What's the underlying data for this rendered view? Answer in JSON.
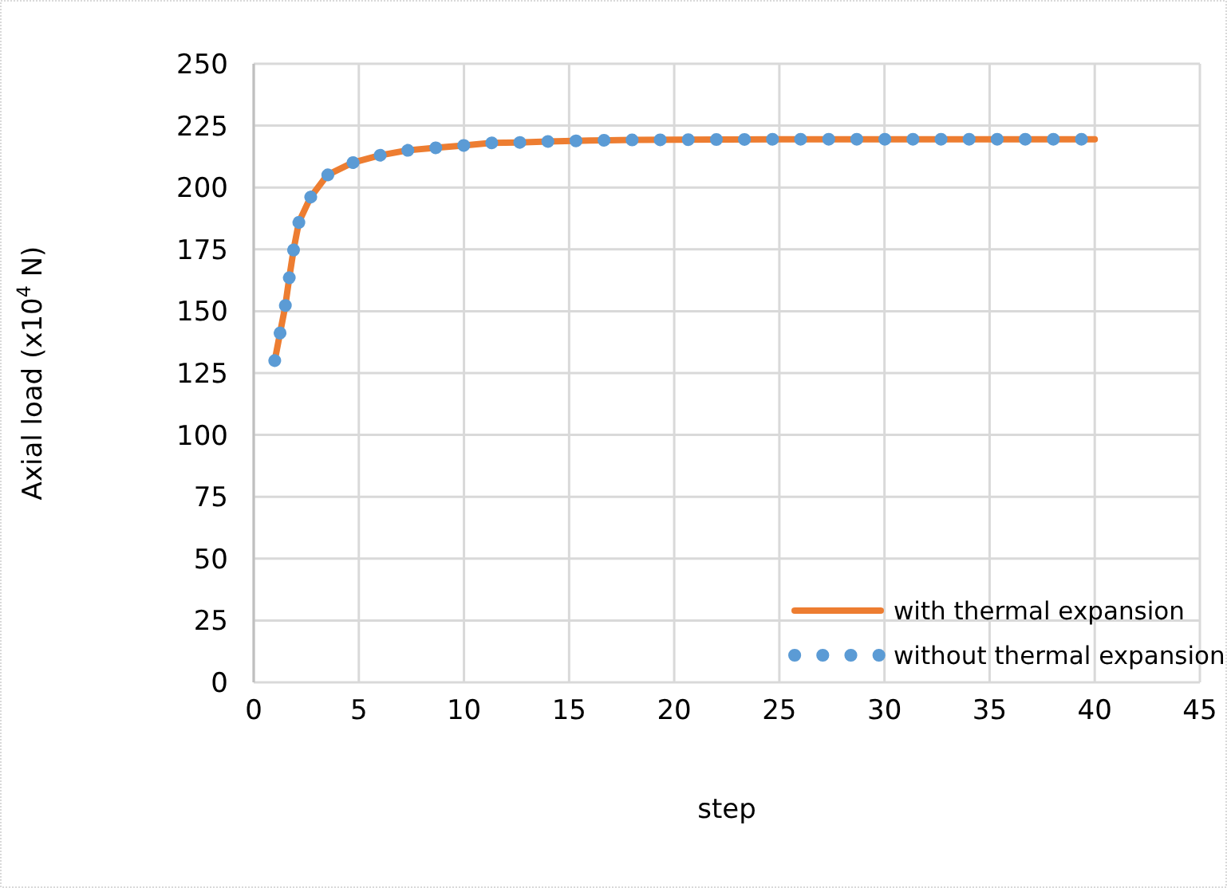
{
  "chart_data": {
    "type": "line",
    "xlabel": "step",
    "ylabel": "Axial load (x10$^{4}$ N)",
    "x": [
      1,
      1.25,
      1.5,
      1.7,
      1.9,
      2.15,
      2.7,
      3.5,
      4.7,
      6,
      7.3,
      8.6,
      10,
      11.3,
      12.6,
      14,
      16,
      18,
      20,
      25,
      30,
      35,
      40
    ],
    "series": [
      {
        "name": "with thermal expansion",
        "color": "#ed7d31",
        "line_style": "solid",
        "values": [
          130,
          141,
          152,
          164,
          175,
          186,
          196,
          205,
          210,
          213,
          215,
          216,
          217,
          218,
          218.2,
          218.6,
          219,
          219.2,
          219.3,
          219.5,
          219.5,
          219.5,
          219.5
        ]
      },
      {
        "name": "without thermal expansion",
        "color": "#5b9bd5",
        "line_style": "dotted",
        "values": [
          130,
          141,
          152,
          164,
          175,
          186,
          196,
          205,
          210,
          213,
          215,
          216,
          217,
          218,
          218.2,
          218.6,
          219,
          219.2,
          219.3,
          219.5,
          219.5,
          219.5,
          219.5
        ]
      }
    ],
    "xlim": [
      0,
      45
    ],
    "xticks": [
      0,
      5,
      10,
      15,
      20,
      25,
      30,
      35,
      40,
      45
    ],
    "ylim": [
      0,
      250
    ],
    "yticks": [
      0,
      25,
      50,
      75,
      100,
      125,
      150,
      175,
      200,
      225,
      250
    ],
    "grid": true,
    "legend": "bottom right"
  }
}
